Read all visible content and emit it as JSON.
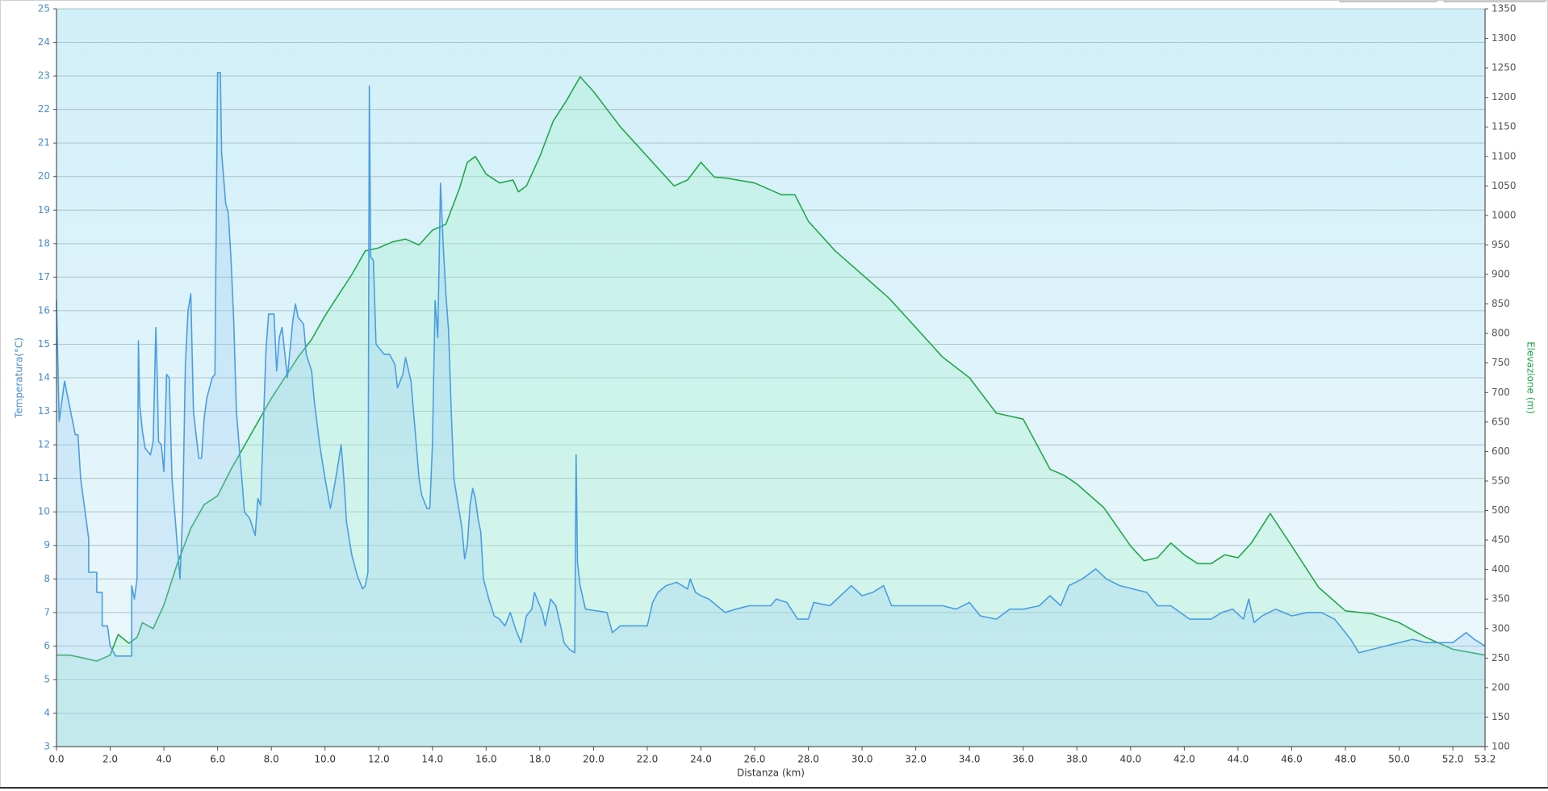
{
  "chart_data": {
    "type": "line",
    "xlabel": "Distanza  (km)",
    "ylabel": "Temperatura(°C)",
    "y2label": "Elevazione (m)",
    "xlim": [
      0,
      53.2
    ],
    "xticks": [
      {
        "value": 0,
        "label": "0.0"
      },
      {
        "value": 2,
        "label": "2.0"
      },
      {
        "value": 4,
        "label": "4.0"
      },
      {
        "value": 6,
        "label": "6.0"
      },
      {
        "value": 8,
        "label": "8.0"
      },
      {
        "value": 10,
        "label": "10.0"
      },
      {
        "value": 12,
        "label": "12.0"
      },
      {
        "value": 14,
        "label": "14.0"
      },
      {
        "value": 16,
        "label": "16.0"
      },
      {
        "value": 18,
        "label": "18.0"
      },
      {
        "value": 20,
        "label": "20.0"
      },
      {
        "value": 22,
        "label": "22.0"
      },
      {
        "value": 24,
        "label": "24.0"
      },
      {
        "value": 26,
        "label": "26.0"
      },
      {
        "value": 28,
        "label": "28.0"
      },
      {
        "value": 30,
        "label": "30.0"
      },
      {
        "value": 32,
        "label": "32.0"
      },
      {
        "value": 34,
        "label": "34.0"
      },
      {
        "value": 36,
        "label": "36.0"
      },
      {
        "value": 38,
        "label": "38.0"
      },
      {
        "value": 40,
        "label": "40.0"
      },
      {
        "value": 42,
        "label": "42.0"
      },
      {
        "value": 44,
        "label": "44.0"
      },
      {
        "value": 46,
        "label": "46.0"
      },
      {
        "value": 48,
        "label": "48.0"
      },
      {
        "value": 50,
        "label": "50.0"
      },
      {
        "value": 52,
        "label": "52.0"
      },
      53.2
    ],
    "ylim": [
      3,
      25
    ],
    "yticks": [
      3,
      4,
      5,
      6,
      7,
      8,
      9,
      10,
      11,
      12,
      13,
      14,
      15,
      16,
      17,
      18,
      19,
      20,
      21,
      22,
      23,
      24,
      25
    ],
    "y2lim": [
      100,
      1350
    ],
    "y2ticks": [
      100,
      150,
      200,
      250,
      300,
      350,
      400,
      450,
      500,
      550,
      600,
      650,
      700,
      750,
      800,
      850,
      900,
      950,
      1000,
      1050,
      1100,
      1150,
      1200,
      1250,
      1300,
      1350
    ],
    "grid": true,
    "series": [
      {
        "name": "Temperatura",
        "color": "#4a9ee0",
        "fill": "rgba(150,200,245,0.28)",
        "x": [
          0,
          0.1,
          0.3,
          0.7,
          0.8,
          0.9,
          1.2,
          1.2,
          1.5,
          1.5,
          1.7,
          1.7,
          1.9,
          2.0,
          2.2,
          2.8,
          2.8,
          2.9,
          3.0,
          3.05,
          3.1,
          3.2,
          3.3,
          3.5,
          3.6,
          3.7,
          3.75,
          3.8,
          3.9,
          4.0,
          4.1,
          4.2,
          4.3,
          4.4,
          4.5,
          4.6,
          4.7,
          4.8,
          4.9,
          5.0,
          5.1,
          5.3,
          5.4,
          5.5,
          5.6,
          5.8,
          5.9,
          6.0,
          6.1,
          6.15,
          6.3,
          6.4,
          6.5,
          6.6,
          6.7,
          6.8,
          6.9,
          7.0,
          7.2,
          7.4,
          7.5,
          7.6,
          7.8,
          7.9,
          8.1,
          8.2,
          8.3,
          8.4,
          8.6,
          8.8,
          8.9,
          9.0,
          9.2,
          9.3,
          9.5,
          9.6,
          9.8,
          10.0,
          10.2,
          10.4,
          10.6,
          10.7,
          10.8,
          11.0,
          11.2,
          11.4,
          11.5,
          11.6,
          11.65,
          11.7,
          11.8,
          11.9,
          12.0,
          12.2,
          12.4,
          12.6,
          12.7,
          12.9,
          13.0,
          13.2,
          13.4,
          13.5,
          13.6,
          13.8,
          13.9,
          14.0,
          14.1,
          14.2,
          14.3,
          14.4,
          14.5,
          14.6,
          14.7,
          14.8,
          14.9,
          15.0,
          15.1,
          15.2,
          15.3,
          15.4,
          15.5,
          15.6,
          15.7,
          15.8,
          15.9,
          16.1,
          16.3,
          16.5,
          16.7,
          16.9,
          17.1,
          17.3,
          17.5,
          17.7,
          17.8,
          17.9,
          18.1,
          18.2,
          18.4,
          18.6,
          18.8,
          18.9,
          19.1,
          19.3,
          19.35,
          19.4,
          19.5,
          19.7,
          20.5,
          20.7,
          21.0,
          22.0,
          22.2,
          22.4,
          22.7,
          23.1,
          23.5,
          23.6,
          23.8,
          24.0,
          24.3,
          24.9,
          25.3,
          25.8,
          26.6,
          26.8,
          27.2,
          27.6,
          28.0,
          28.2,
          28.8,
          29.2,
          29.6,
          30.0,
          30.4,
          30.8,
          31.1,
          33.0,
          33.5,
          34.0,
          34.4,
          35.0,
          35.5,
          36.0,
          36.6,
          37.0,
          37.4,
          37.7,
          38.2,
          38.7,
          39.1,
          39.6,
          40.6,
          41.0,
          41.5,
          42.2,
          43.0,
          43.4,
          43.8,
          44.2,
          44.4,
          44.6,
          44.9,
          45.4,
          46.0,
          46.6,
          47.1,
          47.6,
          48.2,
          48.5,
          49.0,
          50.0,
          50.5,
          51.0,
          52.0,
          52.5,
          52.8,
          53.2
        ],
        "values": [
          16.3,
          12.7,
          13.9,
          12.3,
          12.3,
          11,
          9.2,
          8.2,
          8.2,
          7.6,
          7.6,
          6.6,
          6.6,
          6,
          5.7,
          5.7,
          7.8,
          7.4,
          8,
          15.1,
          13.2,
          12.4,
          11.9,
          11.7,
          12.1,
          15.5,
          14,
          12.1,
          12,
          11.2,
          14.1,
          14,
          11,
          10,
          9,
          8,
          10,
          14.4,
          16,
          16.5,
          13,
          11.6,
          11.6,
          12.8,
          13.4,
          14,
          14.1,
          23.1,
          23.1,
          20.7,
          19.2,
          18.9,
          17.5,
          15.7,
          13,
          12,
          11,
          10,
          9.8,
          9.3,
          10.4,
          10.2,
          14.8,
          15.9,
          15.9,
          14.2,
          15.2,
          15.5,
          14,
          15.7,
          16.2,
          15.8,
          15.6,
          14.7,
          14.2,
          13.3,
          12,
          11,
          10.1,
          11,
          12,
          11,
          9.7,
          8.7,
          8.1,
          7.7,
          7.8,
          8.2,
          22.7,
          17.6,
          17.5,
          15,
          14.9,
          14.7,
          14.7,
          14.4,
          13.7,
          14.1,
          14.6,
          13.9,
          12,
          11,
          10.5,
          10.1,
          10.1,
          12,
          16.3,
          15.2,
          19.8,
          18,
          16.5,
          15.4,
          13,
          11,
          10.5,
          10,
          9.5,
          8.6,
          9,
          10.2,
          10.7,
          10.4,
          9.8,
          9.4,
          8,
          7.4,
          6.9,
          6.8,
          6.6,
          7,
          6.5,
          6.1,
          6.9,
          7.1,
          7.6,
          7.4,
          7,
          6.6,
          7.4,
          7.2,
          6.5,
          6.1,
          5.9,
          5.8,
          11.7,
          8.5,
          7.8,
          7.1,
          7,
          6.4,
          6.6,
          6.6,
          7.3,
          7.6,
          7.8,
          7.9,
          7.7,
          8,
          7.6,
          7.5,
          7.4,
          7.0,
          7.1,
          7.2,
          7.2,
          7.4,
          7.3,
          6.8,
          6.8,
          7.3,
          7.2,
          7.5,
          7.8,
          7.5,
          7.6,
          7.8,
          7.2,
          7.2,
          7.1,
          7.3,
          6.9,
          6.8,
          7.1,
          7.1,
          7.2,
          7.5,
          7.2,
          7.8,
          8,
          8.3,
          8,
          7.8,
          7.6,
          7.2,
          7.2,
          6.8,
          6.8,
          7,
          7.1,
          6.8,
          7.4,
          6.7,
          6.9,
          7.1,
          6.9,
          7,
          7,
          6.8,
          6.2,
          5.8,
          5.9,
          6.1,
          6.2,
          6.1,
          6.1,
          6.4,
          6.2,
          6.0
        ]
      },
      {
        "name": "Elevazione",
        "color": "#22a84a",
        "fill": "rgba(170,240,205,0.35)",
        "axis": "y2",
        "x": [
          0,
          0.5,
          1.0,
          1.5,
          2.0,
          2.3,
          2.7,
          3.0,
          3.2,
          3.6,
          4.0,
          4.5,
          5.0,
          5.5,
          6.0,
          6.5,
          7.0,
          7.5,
          8.0,
          8.5,
          9.0,
          9.5,
          10.0,
          10.5,
          11.0,
          11.5,
          12.0,
          12.5,
          13.0,
          13.5,
          14.0,
          14.5,
          15.0,
          15.3,
          15.6,
          16.0,
          16.5,
          17.0,
          17.2,
          17.5,
          18.0,
          18.5,
          19.0,
          19.5,
          20.0,
          20.5,
          21.0,
          22.0,
          23.0,
          23.5,
          24.0,
          24.5,
          25.0,
          26.0,
          27.0,
          27.5,
          28.0,
          29.0,
          30.0,
          31.0,
          32.0,
          33.0,
          34.0,
          35.0,
          36.0,
          37.0,
          37.5,
          38.0,
          39.0,
          40.0,
          40.5,
          41.0,
          41.5,
          42.0,
          42.5,
          43.0,
          43.5,
          44.0,
          44.5,
          45.2,
          46.0,
          47.0,
          48.0,
          49.0,
          50.0,
          51.0,
          52.0,
          53.2
        ],
        "values": [
          255,
          255,
          250,
          245,
          255,
          290,
          275,
          285,
          310,
          300,
          340,
          410,
          470,
          510,
          525,
          570,
          610,
          650,
          690,
          725,
          760,
          790,
          830,
          865,
          900,
          940,
          945,
          955,
          960,
          950,
          975,
          985,
          1045,
          1090,
          1100,
          1070,
          1055,
          1060,
          1040,
          1050,
          1100,
          1160,
          1195,
          1235,
          1210,
          1180,
          1150,
          1100,
          1050,
          1060,
          1090,
          1065,
          1063,
          1055,
          1035,
          1035,
          990,
          940,
          900,
          860,
          810,
          760,
          725,
          665,
          655,
          570,
          560,
          545,
          505,
          440,
          415,
          420,
          445,
          425,
          410,
          410,
          425,
          420,
          445,
          495,
          440,
          370,
          330,
          325,
          310,
          285,
          265,
          255
        ]
      }
    ]
  }
}
